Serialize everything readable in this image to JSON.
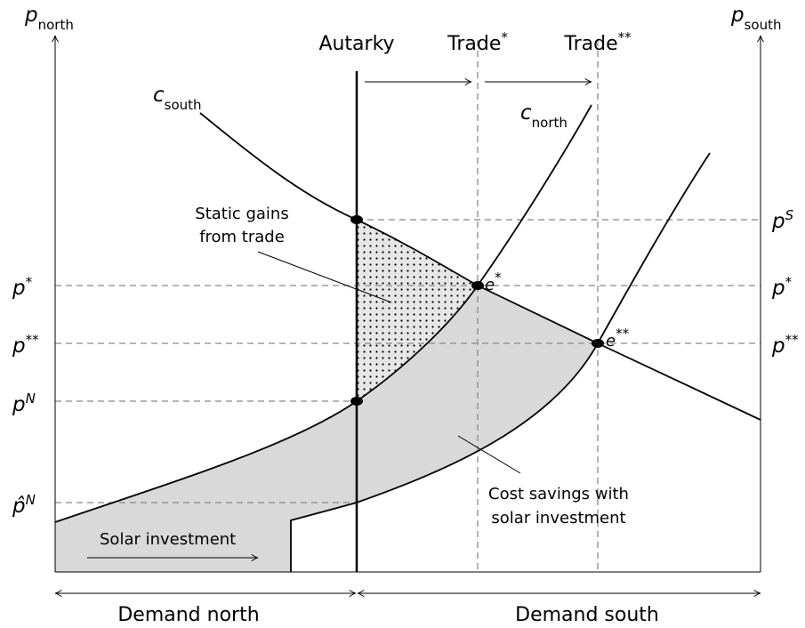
{
  "axes": {
    "left": {
      "symbol": "p",
      "subscript": "north"
    },
    "right": {
      "symbol": "p",
      "subscript": "south"
    }
  },
  "regimes": [
    {
      "label": "Autarky"
    },
    {
      "label": "Trade",
      "sup": "*"
    },
    {
      "label": "Trade",
      "sup": "**"
    }
  ],
  "curves": [
    {
      "symbol": "c",
      "subscript": "south"
    },
    {
      "symbol": "c",
      "subscript": "north"
    }
  ],
  "equilibria": [
    {
      "symbol": "e",
      "sup": "*"
    },
    {
      "symbol": "e",
      "sup": "**"
    }
  ],
  "left_prices": [
    {
      "symbol": "p",
      "sup": "*"
    },
    {
      "symbol": "p",
      "sup": "**"
    },
    {
      "symbol": "p",
      "sup": "N"
    },
    {
      "symbol": "p̂",
      "sup": "N"
    }
  ],
  "right_prices": [
    {
      "symbol": "p",
      "sup": "S"
    },
    {
      "symbol": "p",
      "sup": "*"
    },
    {
      "symbol": "p",
      "sup": "**"
    }
  ],
  "annotations": {
    "static_gains": [
      "Static gains",
      "from trade"
    ],
    "cost_savings": [
      "Cost savings with",
      "solar investment"
    ],
    "solar_investment": "Solar investment"
  },
  "demand": {
    "north": "Demand north",
    "south": "Demand south"
  }
}
